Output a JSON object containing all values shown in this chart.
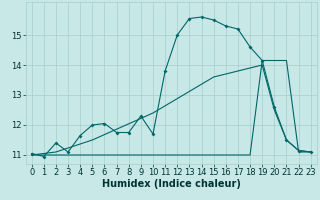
{
  "bg_color": "#c8e8e8",
  "grid_color": "#a8cccc",
  "line_color": "#006666",
  "xlim": [
    -0.5,
    23.5
  ],
  "ylim": [
    10.7,
    16.1
  ],
  "yticks": [
    11,
    12,
    13,
    14,
    15
  ],
  "xticks": [
    0,
    1,
    2,
    3,
    4,
    5,
    6,
    7,
    8,
    9,
    10,
    11,
    12,
    13,
    14,
    15,
    16,
    17,
    18,
    19,
    20,
    21,
    22,
    23
  ],
  "xlabel": "Humidex (Indice chaleur)",
  "line1_x": [
    0,
    1,
    2,
    3,
    4,
    5,
    6,
    7,
    8,
    9,
    10,
    11,
    12,
    13,
    14,
    15,
    16,
    17,
    18,
    19,
    20,
    21,
    22,
    23
  ],
  "line1_y": [
    11.05,
    10.95,
    11.4,
    11.1,
    11.65,
    12.0,
    12.05,
    11.75,
    11.75,
    12.3,
    11.7,
    13.8,
    15.0,
    15.55,
    15.6,
    15.5,
    15.3,
    15.2,
    14.6,
    14.15,
    12.6,
    11.5,
    11.15,
    11.1
  ],
  "line2_x": [
    0,
    2,
    10,
    18,
    19,
    21,
    22,
    23
  ],
  "line2_y": [
    11.0,
    11.0,
    11.0,
    11.0,
    14.15,
    14.15,
    11.1,
    11.1
  ],
  "line3_x": [
    0,
    2,
    5,
    10,
    15,
    19,
    20,
    21,
    22,
    23
  ],
  "line3_y": [
    11.0,
    11.1,
    11.5,
    12.4,
    13.6,
    14.0,
    12.5,
    11.5,
    11.15,
    11.1
  ],
  "xlabel_fontsize": 7,
  "tick_fontsize": 6
}
